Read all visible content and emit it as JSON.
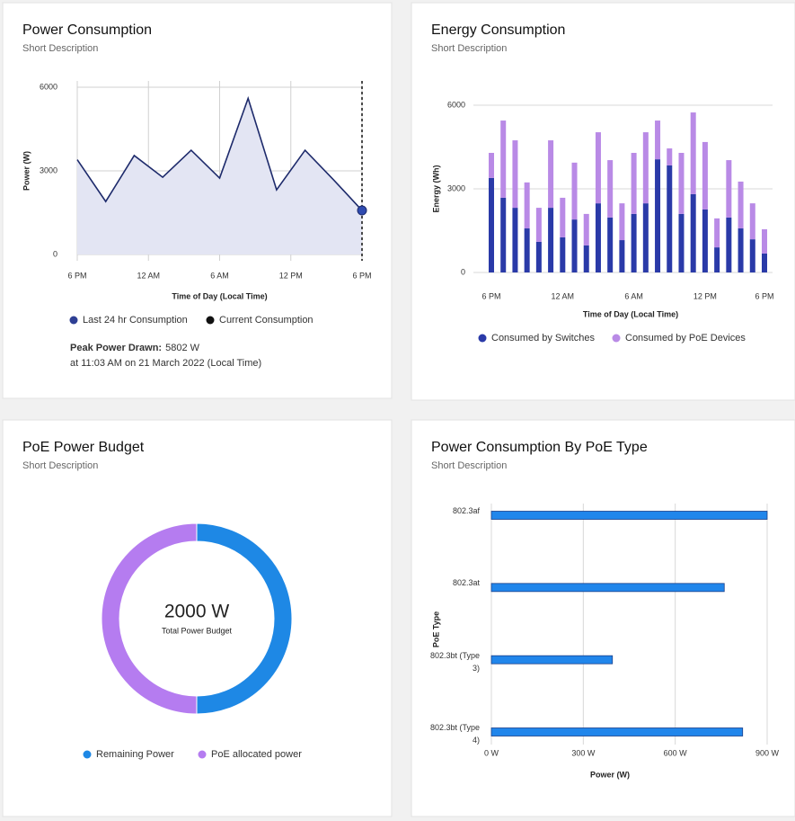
{
  "chart_data": [
    {
      "type": "area",
      "title": "Power Consumption",
      "subtitle": "Short Description",
      "x_label": "Time of Day (Local Time)",
      "y_label": "Power (W)",
      "x": [
        0,
        2.4,
        4.8,
        7.2,
        9.6,
        12,
        14.4,
        16.8,
        19.2,
        21.6,
        24
      ],
      "xlim": [
        0,
        24
      ],
      "xticks": [
        {
          "value": 0,
          "label": "6 PM"
        },
        {
          "value": 6,
          "label": "12 AM"
        },
        {
          "value": 12,
          "label": "6 AM"
        },
        {
          "value": 18,
          "label": "12 PM"
        },
        {
          "value": 24,
          "label": "6 PM"
        }
      ],
      "ylim": [
        0,
        6000
      ],
      "yticks": [
        0,
        3000,
        6000
      ],
      "grid": true,
      "series": [
        {
          "name": "Last 24 hr Consumption",
          "color": "#2e3f94",
          "line_color": "#1d2a6b",
          "fill": "#e3e5f3",
          "marker_color": "#2f4bb0",
          "values": [
            3400,
            1900,
            3550,
            2770,
            3740,
            2740,
            5600,
            2320,
            3740,
            2680,
            1580
          ]
        }
      ],
      "current": {
        "name": "Current Consumption",
        "color": "#111111"
      },
      "annotation": {
        "label": "Peak Power Drawn:",
        "value": "5802 W",
        "detail": "at 11:03 AM on 21 March 2022 (Local Time)"
      }
    },
    {
      "type": "stacked_bar",
      "title": "Energy Consumption",
      "subtitle": "Short Description",
      "x_label": "Time of Day (Local Time)",
      "y_label": "Energy (Wh)",
      "categories": [
        "6 PM",
        null,
        null,
        null,
        null,
        null,
        "12 AM",
        null,
        null,
        null,
        null,
        null,
        "6 AM",
        null,
        null,
        null,
        null,
        null,
        "12 PM",
        null,
        null,
        null,
        null,
        "6 PM"
      ],
      "ylim": [
        0,
        6000
      ],
      "yticks": [
        0,
        3000,
        6000
      ],
      "grid": true,
      "series": [
        {
          "name": "Consumed by Switches",
          "color": "#2a3aa8",
          "values": [
            3390,
            2680,
            2320,
            1580,
            1100,
            2320,
            1260,
            1900,
            970,
            2480,
            1970,
            1160,
            2100,
            2480,
            4060,
            3840,
            2100,
            2810,
            2260,
            900,
            1970,
            1580,
            1190,
            680
          ]
        },
        {
          "name": "Consumed by PoE Devices",
          "color": "#b98ae6",
          "values": [
            900,
            2770,
            2420,
            1650,
            1220,
            2420,
            1420,
            2040,
            1130,
            2550,
            2060,
            1320,
            2190,
            2550,
            1390,
            610,
            2190,
            2930,
            2420,
            1040,
            2060,
            1680,
            1290,
            870
          ]
        }
      ]
    },
    {
      "type": "donut",
      "title": "PoE Power Budget",
      "subtitle": "Short Description",
      "center_value": "2000 W",
      "center_label": "Total Power Budget",
      "categories": [
        "Remaining Power",
        "PoE allocated power"
      ],
      "values": [
        50,
        50
      ],
      "colors": [
        "#1e88e5",
        "#b57cf0"
      ]
    },
    {
      "type": "hbar",
      "title": "Power Consumption By PoE Type",
      "subtitle": "Short Description",
      "x_label": "Power (W)",
      "y_label": "PoE Type",
      "categories": [
        "802.3af",
        "802.3at",
        "802.3bt (Type 3)",
        "802.3bt (Type 4)"
      ],
      "values": [
        900,
        760,
        395,
        820
      ],
      "color": "#2186eb",
      "edge_color": "#1a3f8a",
      "xlim": [
        0,
        900
      ],
      "xticks": [
        {
          "value": 0,
          "label": "0 W"
        },
        {
          "value": 300,
          "label": "300 W"
        },
        {
          "value": 600,
          "label": "600 W"
        },
        {
          "value": 900,
          "label": "900 W"
        }
      ],
      "grid": true
    }
  ]
}
